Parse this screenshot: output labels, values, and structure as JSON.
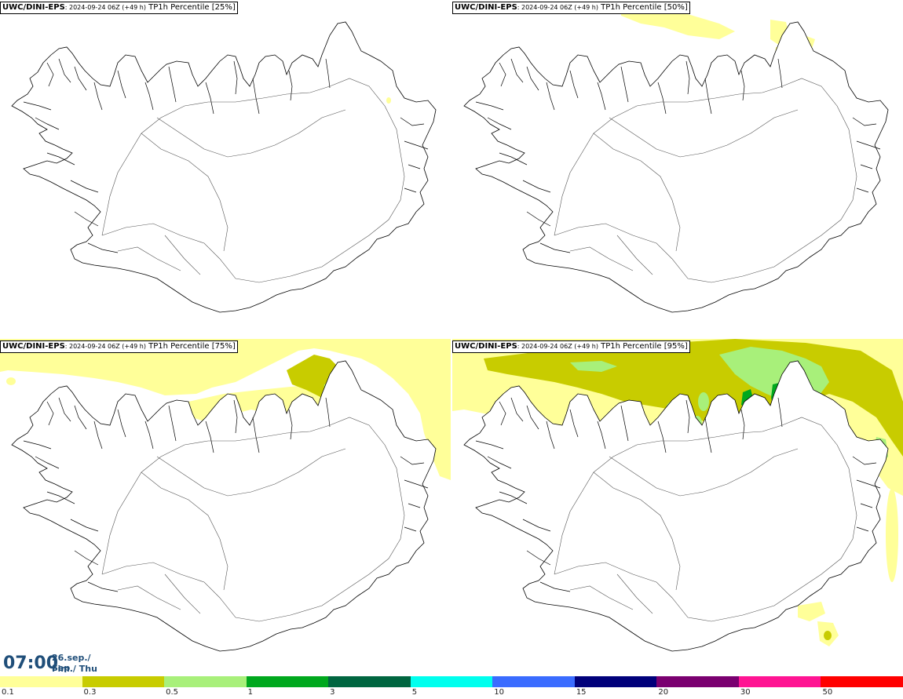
{
  "panels": [
    {
      "source": "UWC/DINI-EPS",
      "run": ": 2024-09-24 06Z (+49 h)",
      "variable": " TP1h Percentile [25%]"
    },
    {
      "source": "UWC/DINI-EPS",
      "run": ": 2024-09-24 06Z (+49 h)",
      "variable": " TP1h Percentile [50%]"
    },
    {
      "source": "UWC/DINI-EPS",
      "run": ": 2024-09-24 06Z (+49 h)",
      "variable": " TP1h Percentile [75%]"
    },
    {
      "source": "UWC/DINI-EPS",
      "run": ": 2024-09-24 06Z (+49 h)",
      "variable": " TP1h Percentile [95%]"
    }
  ],
  "valid_time": {
    "time": "07:00",
    "date": "26.sep./ Sep",
    "weekday": "Fim./ Thu"
  },
  "legend": {
    "labels": [
      "0.1",
      "0.3",
      "0.5",
      "1",
      "3",
      "5",
      "10",
      "15",
      "20",
      "30",
      "50"
    ],
    "colors": [
      "#ffff99",
      "#c8cc00",
      "#a8f07a",
      "#00a81e",
      "#006640",
      "#00ffee",
      "#3a6cff",
      "#00007a",
      "#7a0070",
      "#ff1493",
      "#ff0000"
    ]
  },
  "colors": {
    "coast": "#000000",
    "roads": "#555555",
    "precip_light": "#ffff99",
    "precip_mid": "#c8cc00",
    "precip_green": "#a8f07a",
    "precip_dark": "#00a81e",
    "time_text": "#1f4e79"
  }
}
